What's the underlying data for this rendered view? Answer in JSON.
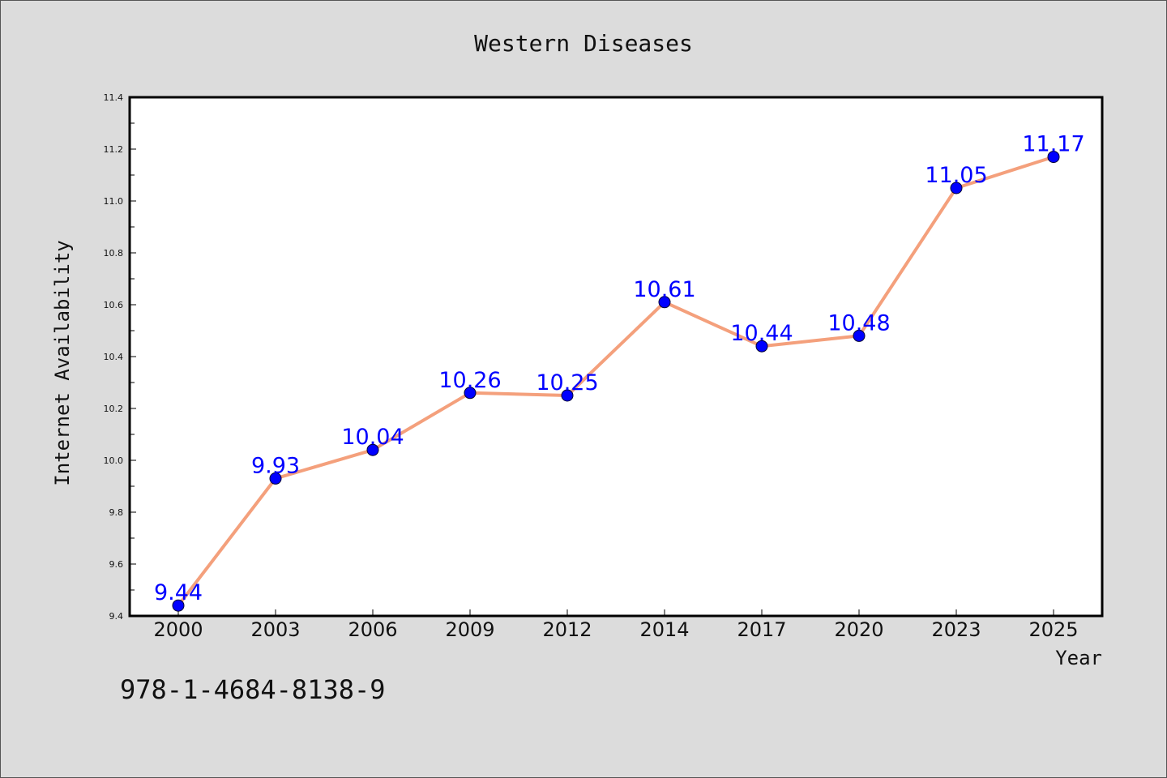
{
  "chart_data": {
    "type": "line",
    "title": "Western Diseases",
    "xlabel": "Year",
    "ylabel": "Internet Availability",
    "categories": [
      "2000",
      "2003",
      "2006",
      "2009",
      "2012",
      "2014",
      "2017",
      "2020",
      "2023",
      "2025"
    ],
    "series": [
      {
        "values": [
          9.44,
          9.93,
          10.04,
          10.26,
          10.25,
          10.61,
          10.44,
          10.48,
          11.05,
          11.17
        ],
        "labels": [
          "9.44",
          "9.93",
          "10.04",
          "10.26",
          "10.25",
          "10.61",
          "10.44",
          "10.48",
          "11.05",
          "11.17"
        ],
        "line_color": "#f4a07c",
        "marker_color": "#0000ff"
      }
    ],
    "ylim": [
      9.4,
      11.4
    ],
    "yticks": [
      "9.4",
      "9.6",
      "9.8",
      "10.0",
      "10.2",
      "10.4",
      "10.6",
      "10.8",
      "11.0",
      "11.2",
      "11.4"
    ],
    "grid": false,
    "label_color": "#0000ff"
  },
  "footer": {
    "isbn": "978-1-4684-8138-9"
  },
  "colors": {
    "background": "#dcdcdc",
    "plot_background": "#ffffff"
  }
}
